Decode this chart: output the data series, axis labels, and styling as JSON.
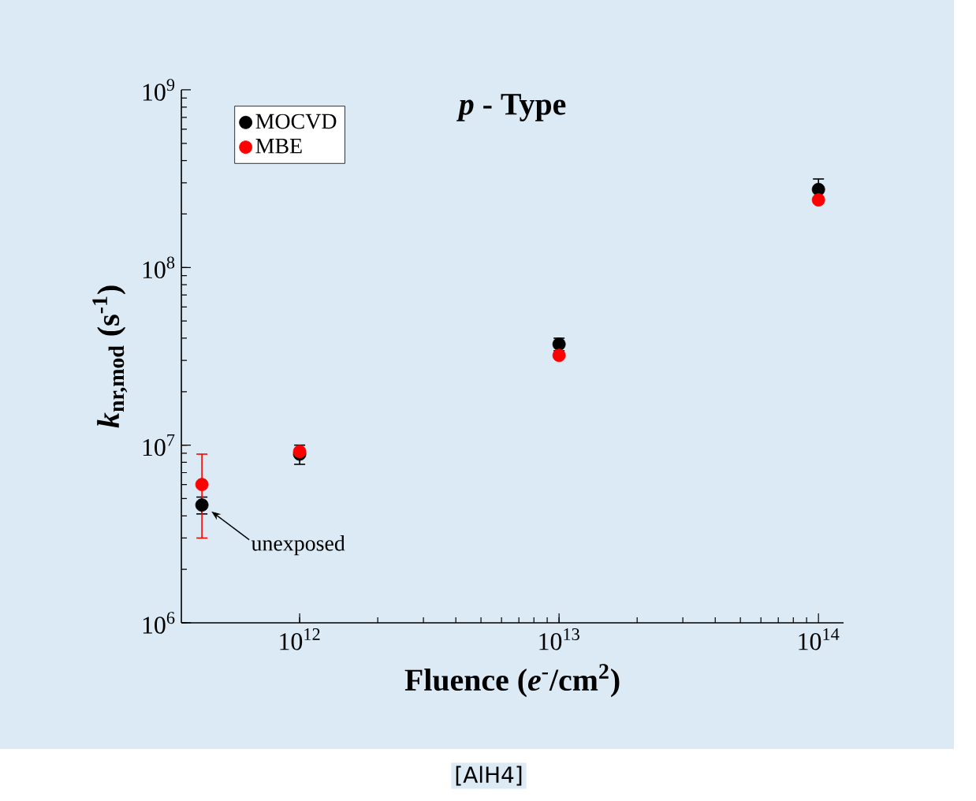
{
  "chart_data": {
    "type": "scatter",
    "title": "*p* - Type",
    "xlabel": "Fluence (*e*$^{-}$/cm$^{2}$)",
    "ylabel": "*k*$_{nr,mod}$ (s$^{-1}$)",
    "x": [
      420000000000.0,
      1000000000000.0,
      10000000000000.0,
      100000000000000.0
    ],
    "series": [
      {
        "name": "MOCVD",
        "color": "#000000",
        "values": [
          4600000.0,
          8900000.0,
          37000000.0,
          275000000.0
        ],
        "errors": [
          500000.0,
          1100000.0,
          3000000.0,
          40000000.0
        ]
      },
      {
        "name": "MBE",
        "color": "#ff0000",
        "values": [
          6000000.0,
          9200000.0,
          32000000.0,
          240000000.0
        ],
        "errors": [
          [
            3000000.0,
            8900000.0
          ],
          null,
          null,
          null
        ]
      }
    ],
    "xlim": [
      350000000000.0,
      125000000000000.0
    ],
    "ylim": [
      1000000.0,
      1000000000.0
    ],
    "xticks": [
      {
        "value": 1000000000000.0,
        "label": "10$^{12}$"
      },
      {
        "value": 10000000000000.0,
        "label": "10$^{13}$"
      },
      {
        "value": 100000000000000.0,
        "label": "10$^{14}$"
      }
    ],
    "yticks": [
      {
        "value": 1000000.0,
        "label": "10$^{6}$"
      },
      {
        "value": 10000000.0,
        "label": "10$^{7}$"
      },
      {
        "value": 100000000.0,
        "label": "10$^{8}$"
      },
      {
        "value": 1000000000.0,
        "label": "10$^{9}$"
      }
    ],
    "log": "xy",
    "grid": false,
    "legend": "top left",
    "annotations": [
      {
        "text": "unexposed",
        "x": 420000000000.0,
        "y": 4600000.0
      },
      "[AlH4]"
    ]
  }
}
